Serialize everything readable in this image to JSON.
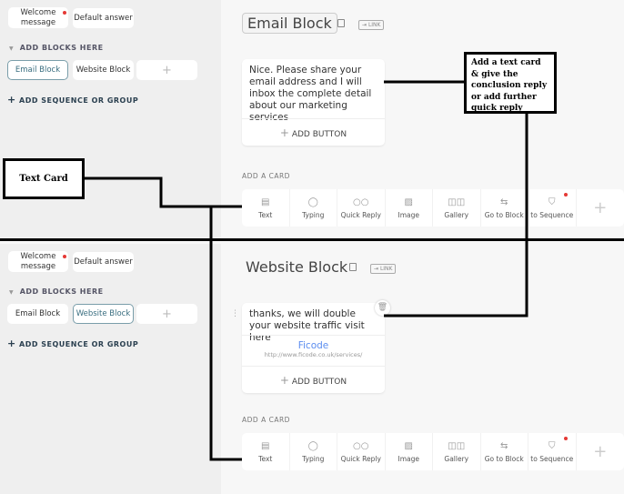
{
  "panels": [
    {
      "sidebar": {
        "welcome": "Welcome message",
        "default_answer": "Default answer",
        "add_blocks": "ADD BLOCKS HERE",
        "blocks": [
          "Email Block",
          "Website Block"
        ],
        "add_plus": "+",
        "add_sequence": "ADD SEQUENCE OR GROUP",
        "selected": "Email Block"
      },
      "main": {
        "title": "Email Block",
        "link": "LINK",
        "card_text": "Nice. Please share your email address and I will inbox the complete detail about our marketing services",
        "add_button": "ADD BUTTON",
        "add_card": "ADD A CARD"
      }
    },
    {
      "sidebar": {
        "welcome": "Welcome message",
        "default_answer": "Default answer",
        "add_blocks": "ADD BLOCKS HERE",
        "blocks": [
          "Email Block",
          "Website Block"
        ],
        "add_plus": "+",
        "add_sequence": "ADD SEQUENCE OR GROUP",
        "selected": "Website Block"
      },
      "main": {
        "title": "Website Block",
        "link": "LINK",
        "card_text": "thanks, we will double your website traffic visit here",
        "button_title": "Ficode",
        "button_url": "http://www.ficode.co.uk/services/",
        "add_button": "ADD BUTTON",
        "add_card": "ADD A CARD"
      }
    }
  ],
  "toolbar": [
    "Text",
    "Typing",
    "Quick Reply",
    "Image",
    "Gallery",
    "Go to Block",
    "to Sequence"
  ],
  "toolbar_icons": [
    "text-icon",
    "typing-icon",
    "quick-reply-icon",
    "image-icon",
    "gallery-icon",
    "go-to-block-icon",
    "filter-icon"
  ],
  "annotations": {
    "text_card": "Text Card",
    "add_text_card": "Add a text card & give the conclusion reply or add further quick reply"
  },
  "colors": {
    "accent": "#7a9eaa",
    "link": "#5b8def",
    "notify": "#e53935"
  }
}
